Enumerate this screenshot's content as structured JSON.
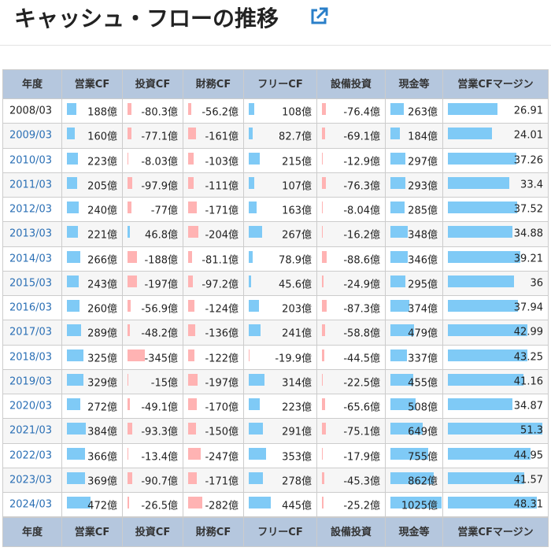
{
  "title": "キャッシュ・フローの推移",
  "header": [
    "年度",
    "営業CF",
    "投資CF",
    "財務CF",
    "フリーCF",
    "設備投資",
    "現金等",
    "営業CFマージン"
  ],
  "rows": [
    [
      "2008/03",
      {
        "value": 188,
        "label": "188億"
      },
      {
        "value": -80.3,
        "label": "-80.3億"
      },
      {
        "value": -56.2,
        "label": "-56.2億"
      },
      {
        "value": 108,
        "label": "108億"
      },
      {
        "value": -76.4,
        "label": "-76.4億"
      },
      {
        "value": 263,
        "label": "263億"
      },
      26.91
    ],
    [
      "2009/03",
      {
        "value": 160,
        "label": "160億"
      },
      {
        "value": -77.1,
        "label": "-77.1億"
      },
      {
        "value": -161,
        "label": "-161億"
      },
      {
        "value": 82.7,
        "label": "82.7億"
      },
      {
        "value": -69.1,
        "label": "-69.1億"
      },
      {
        "value": 184,
        "label": "184億"
      },
      24.01
    ],
    [
      "2010/03",
      {
        "value": 223,
        "label": "223億"
      },
      {
        "value": -8.03,
        "label": "-8.03億"
      },
      {
        "value": -103,
        "label": "-103億"
      },
      {
        "value": 215,
        "label": "215億"
      },
      {
        "value": -12.9,
        "label": "-12.9億"
      },
      {
        "value": 297,
        "label": "297億"
      },
      37.26
    ],
    [
      "2011/03",
      {
        "value": 205,
        "label": "205億"
      },
      {
        "value": -97.9,
        "label": "-97.9億"
      },
      {
        "value": -111,
        "label": "-111億"
      },
      {
        "value": 107,
        "label": "107億"
      },
      {
        "value": -76.3,
        "label": "-76.3億"
      },
      {
        "value": 293,
        "label": "293億"
      },
      33.4
    ],
    [
      "2012/03",
      {
        "value": 240,
        "label": "240億"
      },
      {
        "value": -77,
        "label": "-77億"
      },
      {
        "value": -171,
        "label": "-171億"
      },
      {
        "value": 163,
        "label": "163億"
      },
      {
        "value": -8.04,
        "label": "-8.04億"
      },
      {
        "value": 285,
        "label": "285億"
      },
      37.52
    ],
    [
      "2013/03",
      {
        "value": 221,
        "label": "221億"
      },
      {
        "value": 46.8,
        "label": "46.8億"
      },
      {
        "value": -204,
        "label": "-204億"
      },
      {
        "value": 267,
        "label": "267億"
      },
      {
        "value": -16.2,
        "label": "-16.2億"
      },
      {
        "value": 348,
        "label": "348億"
      },
      34.88
    ],
    [
      "2014/03",
      {
        "value": 266,
        "label": "266億"
      },
      {
        "value": -188,
        "label": "-188億"
      },
      {
        "value": -81.1,
        "label": "-81.1億"
      },
      {
        "value": 78.9,
        "label": "78.9億"
      },
      {
        "value": -88.6,
        "label": "-88.6億"
      },
      {
        "value": 346,
        "label": "346億"
      },
      39.21
    ],
    [
      "2015/03",
      {
        "value": 243,
        "label": "243億"
      },
      {
        "value": -197,
        "label": "-197億"
      },
      {
        "value": -97.2,
        "label": "-97.2億"
      },
      {
        "value": 45.6,
        "label": "45.6億"
      },
      {
        "value": -24.9,
        "label": "-24.9億"
      },
      {
        "value": 295,
        "label": "295億"
      },
      36
    ],
    [
      "2016/03",
      {
        "value": 260,
        "label": "260億"
      },
      {
        "value": -56.9,
        "label": "-56.9億"
      },
      {
        "value": -124,
        "label": "-124億"
      },
      {
        "value": 203,
        "label": "203億"
      },
      {
        "value": -87.3,
        "label": "-87.3億"
      },
      {
        "value": 374,
        "label": "374億"
      },
      37.94
    ],
    [
      "2017/03",
      {
        "value": 289,
        "label": "289億"
      },
      {
        "value": -48.2,
        "label": "-48.2億"
      },
      {
        "value": -136,
        "label": "-136億"
      },
      {
        "value": 241,
        "label": "241億"
      },
      {
        "value": -58.8,
        "label": "-58.8億"
      },
      {
        "value": 479,
        "label": "479億"
      },
      42.99
    ],
    [
      "2018/03",
      {
        "value": 325,
        "label": "325億"
      },
      {
        "value": -345,
        "label": "-345億"
      },
      {
        "value": -122,
        "label": "-122億"
      },
      {
        "value": -19.9,
        "label": "-19.9億"
      },
      {
        "value": -44.5,
        "label": "-44.5億"
      },
      {
        "value": 337,
        "label": "337億"
      },
      43.25
    ],
    [
      "2019/03",
      {
        "value": 329,
        "label": "329億"
      },
      {
        "value": -15,
        "label": "-15億"
      },
      {
        "value": -197,
        "label": "-197億"
      },
      {
        "value": 314,
        "label": "314億"
      },
      {
        "value": -22.5,
        "label": "-22.5億"
      },
      {
        "value": 455,
        "label": "455億"
      },
      41.16
    ],
    [
      "2020/03",
      {
        "value": 272,
        "label": "272億"
      },
      {
        "value": -49.1,
        "label": "-49.1億"
      },
      {
        "value": -170,
        "label": "-170億"
      },
      {
        "value": 223,
        "label": "223億"
      },
      {
        "value": -65.6,
        "label": "-65.6億"
      },
      {
        "value": 508,
        "label": "508億"
      },
      34.87
    ],
    [
      "2021/03",
      {
        "value": 384,
        "label": "384億"
      },
      {
        "value": -93.3,
        "label": "-93.3億"
      },
      {
        "value": -150,
        "label": "-150億"
      },
      {
        "value": 291,
        "label": "291億"
      },
      {
        "value": -75.1,
        "label": "-75.1億"
      },
      {
        "value": 649,
        "label": "649億"
      },
      51.3
    ],
    [
      "2022/03",
      {
        "value": 366,
        "label": "366億"
      },
      {
        "value": -13.4,
        "label": "-13.4億"
      },
      {
        "value": -247,
        "label": "-247億"
      },
      {
        "value": 353,
        "label": "353億"
      },
      {
        "value": -17.9,
        "label": "-17.9億"
      },
      {
        "value": 755,
        "label": "755億"
      },
      44.95
    ],
    [
      "2023/03",
      {
        "value": 369,
        "label": "369億"
      },
      {
        "value": -90.7,
        "label": "-90.7億"
      },
      {
        "value": -171,
        "label": "-171億"
      },
      {
        "value": 278,
        "label": "278億"
      },
      {
        "value": -45.3,
        "label": "-45.3億"
      },
      {
        "value": 862,
        "label": "862億"
      },
      41.57
    ],
    [
      "2024/03",
      {
        "value": 472,
        "label": "472億"
      },
      {
        "value": -26.5,
        "label": "-26.5億"
      },
      {
        "value": -282,
        "label": "-282億"
      },
      {
        "value": 445,
        "label": "445億"
      },
      {
        "value": -25.2,
        "label": "-25.2億"
      },
      {
        "value": 1025,
        "label": "1025億"
      },
      48.31
    ]
  ]
}
